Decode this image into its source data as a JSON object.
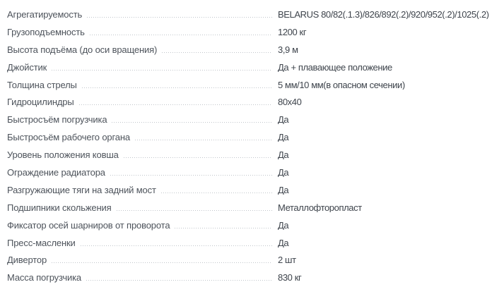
{
  "colors": {
    "background": "#ffffff",
    "label": "#4d535b",
    "value": "#3e444c",
    "leader": "#c0c5ca"
  },
  "spec_table": {
    "rows": [
      {
        "label": "Агрегатируемость",
        "value": "BELARUS 80/82(.1.3)/826/892(.2)/920/952(.2)/1025(.2)"
      },
      {
        "label": "Грузоподъемность",
        "value": "1200 кг"
      },
      {
        "label": "Высота подъёма (до оси вращения)",
        "value": "3,9 м"
      },
      {
        "label": "Джойстик",
        "value": "Да + плавающее положение"
      },
      {
        "label": "Толщина стрелы",
        "value": "5 мм/10 мм(в опасном сечении)"
      },
      {
        "label": "Гидроцилиндры",
        "value": "80x40"
      },
      {
        "label": "Быстросъём погрузчика",
        "value": "Да"
      },
      {
        "label": "Быстросъём рабочего органа",
        "value": "Да"
      },
      {
        "label": "Уровень положения ковша",
        "value": "Да"
      },
      {
        "label": "Ограждение радиатора",
        "value": "Да"
      },
      {
        "label": "Разгружающие тяги на задний мост",
        "value": "Да"
      },
      {
        "label": "Подшипники скольжения",
        "value": "Металлофторопласт"
      },
      {
        "label": "Фиксатор осей шарниров от проворота",
        "value": "Да"
      },
      {
        "label": "Пресс-масленки",
        "value": "Да"
      },
      {
        "label": "Дивертор",
        "value": "2 шт"
      },
      {
        "label": "Масса погрузчика",
        "value": "830 кг"
      }
    ]
  }
}
